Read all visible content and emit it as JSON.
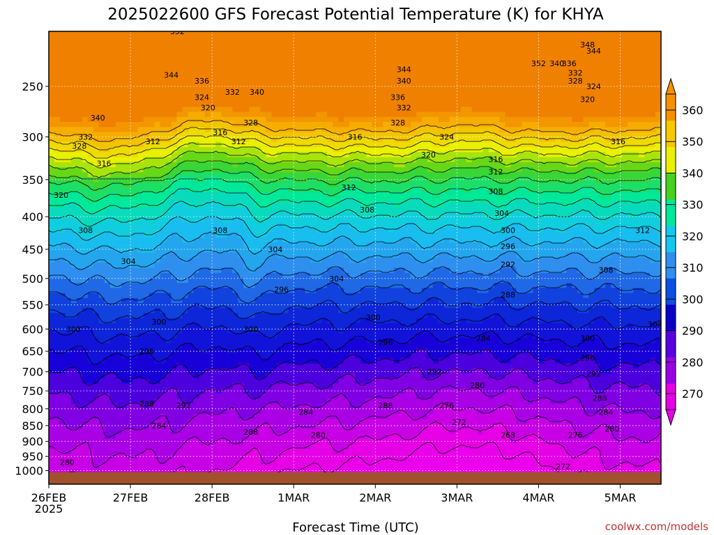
{
  "chart_data": {
    "type": "heatmap",
    "title": "2025022600 GFS Forecast Potential Temperature (K) for KHYA",
    "xlabel": "Forecast Time (UTC)",
    "ylabel": "",
    "x_ticks": [
      "26FEB",
      "27FEB",
      "28FEB",
      "1MAR",
      "2MAR",
      "3MAR",
      "4MAR",
      "5MAR"
    ],
    "x_tick_sub": "2025",
    "y_ticks": [
      250,
      300,
      350,
      400,
      450,
      500,
      550,
      600,
      650,
      700,
      750,
      800,
      850,
      900,
      950,
      1000
    ],
    "y_axis": "pressure (hPa), log scale, inverted",
    "colorbar_ticks": [
      270,
      280,
      290,
      300,
      310,
      320,
      330,
      340,
      350,
      360
    ],
    "colorbar_colors": [
      "#e600e6",
      "#9a00e6",
      "#5a00e0",
      "#0a00c8",
      "#0a4fe0",
      "#2f8fef",
      "#14c8ef",
      "#00e89a",
      "#46d21e",
      "#e9f000",
      "#f7c800",
      "#f59000"
    ],
    "contour_interval": 4,
    "contour_labels": [
      {
        "t": 0.03,
        "p": 970,
        "v": 280
      },
      {
        "t": 0.16,
        "p": 785,
        "v": 288
      },
      {
        "t": 0.18,
        "p": 850,
        "v": 284
      },
      {
        "t": 0.22,
        "p": 790,
        "v": 292
      },
      {
        "t": 0.42,
        "p": 810,
        "v": 284
      },
      {
        "t": 0.44,
        "p": 880,
        "v": 280
      },
      {
        "t": 0.55,
        "p": 790,
        "v": 288
      },
      {
        "t": 0.33,
        "p": 870,
        "v": 288
      },
      {
        "t": 0.55,
        "p": 630,
        "v": 296
      },
      {
        "t": 0.63,
        "p": 700,
        "v": 292
      },
      {
        "t": 0.53,
        "p": 575,
        "v": 300
      },
      {
        "t": 0.47,
        "p": 500,
        "v": 304
      },
      {
        "t": 0.28,
        "p": 420,
        "v": 308
      },
      {
        "t": 0.37,
        "p": 450,
        "v": 304
      },
      {
        "t": 0.38,
        "p": 520,
        "v": 296
      },
      {
        "t": 0.33,
        "p": 600,
        "v": 300
      },
      {
        "t": 0.18,
        "p": 585,
        "v": 300
      },
      {
        "t": 0.16,
        "p": 650,
        "v": 296
      },
      {
        "t": 0.04,
        "p": 600,
        "v": 300
      },
      {
        "t": 0.06,
        "p": 420,
        "v": 308
      },
      {
        "t": 0.13,
        "p": 470,
        "v": 304
      },
      {
        "t": 0.02,
        "p": 370,
        "v": 320
      },
      {
        "t": 0.09,
        "p": 330,
        "v": 316
      },
      {
        "t": 0.06,
        "p": 300,
        "v": 332
      },
      {
        "t": 0.05,
        "p": 310,
        "v": 328
      },
      {
        "t": 0.08,
        "p": 280,
        "v": 340
      },
      {
        "t": 0.17,
        "p": 305,
        "v": 312
      },
      {
        "t": 0.2,
        "p": 240,
        "v": 344
      },
      {
        "t": 0.25,
        "p": 245,
        "v": 336
      },
      {
        "t": 0.25,
        "p": 260,
        "v": 324
      },
      {
        "t": 0.26,
        "p": 270,
        "v": 320
      },
      {
        "t": 0.3,
        "p": 255,
        "v": 332
      },
      {
        "t": 0.34,
        "p": 255,
        "v": 340
      },
      {
        "t": 0.33,
        "p": 285,
        "v": 328
      },
      {
        "t": 0.28,
        "p": 295,
        "v": 316
      },
      {
        "t": 0.31,
        "p": 305,
        "v": 312
      },
      {
        "t": 0.21,
        "p": 205,
        "v": 352
      },
      {
        "t": 0.5,
        "p": 200,
        "v": 348
      },
      {
        "t": 0.5,
        "p": 300,
        "v": 316
      },
      {
        "t": 0.49,
        "p": 360,
        "v": 312
      },
      {
        "t": 0.52,
        "p": 390,
        "v": 308
      },
      {
        "t": 0.58,
        "p": 235,
        "v": 344
      },
      {
        "t": 0.58,
        "p": 245,
        "v": 340
      },
      {
        "t": 0.57,
        "p": 260,
        "v": 336
      },
      {
        "t": 0.58,
        "p": 270,
        "v": 332
      },
      {
        "t": 0.57,
        "p": 285,
        "v": 328
      },
      {
        "t": 0.65,
        "p": 300,
        "v": 324
      },
      {
        "t": 0.62,
        "p": 320,
        "v": 320
      },
      {
        "t": 0.73,
        "p": 325,
        "v": 316
      },
      {
        "t": 0.73,
        "p": 340,
        "v": 312
      },
      {
        "t": 0.73,
        "p": 365,
        "v": 308
      },
      {
        "t": 0.74,
        "p": 395,
        "v": 304
      },
      {
        "t": 0.75,
        "p": 420,
        "v": 300
      },
      {
        "t": 0.75,
        "p": 445,
        "v": 296
      },
      {
        "t": 0.75,
        "p": 475,
        "v": 292
      },
      {
        "t": 0.75,
        "p": 530,
        "v": 288
      },
      {
        "t": 0.71,
        "p": 620,
        "v": 284
      },
      {
        "t": 0.7,
        "p": 735,
        "v": 280
      },
      {
        "t": 0.65,
        "p": 790,
        "v": 276
      },
      {
        "t": 0.67,
        "p": 840,
        "v": 272
      },
      {
        "t": 0.75,
        "p": 880,
        "v": 268
      },
      {
        "t": 0.8,
        "p": 230,
        "v": 352
      },
      {
        "t": 0.83,
        "p": 230,
        "v": 340
      },
      {
        "t": 0.85,
        "p": 230,
        "v": 336
      },
      {
        "t": 0.88,
        "p": 215,
        "v": 348
      },
      {
        "t": 0.89,
        "p": 220,
        "v": 344
      },
      {
        "t": 0.86,
        "p": 238,
        "v": 332
      },
      {
        "t": 0.86,
        "p": 245,
        "v": 328
      },
      {
        "t": 0.89,
        "p": 250,
        "v": 324
      },
      {
        "t": 0.88,
        "p": 262,
        "v": 320
      },
      {
        "t": 0.93,
        "p": 305,
        "v": 316
      },
      {
        "t": 0.97,
        "p": 420,
        "v": 312
      },
      {
        "t": 0.91,
        "p": 485,
        "v": 308
      },
      {
        "t": 0.99,
        "p": 590,
        "v": 304
      },
      {
        "t": 0.88,
        "p": 620,
        "v": 300
      },
      {
        "t": 0.88,
        "p": 665,
        "v": 296
      },
      {
        "t": 0.89,
        "p": 705,
        "v": 292
      },
      {
        "t": 0.9,
        "p": 770,
        "v": 288
      },
      {
        "t": 0.91,
        "p": 810,
        "v": 284
      },
      {
        "t": 0.92,
        "p": 860,
        "v": 280
      },
      {
        "t": 0.86,
        "p": 880,
        "v": 276
      },
      {
        "t": 0.84,
        "p": 985,
        "v": 272
      }
    ]
  },
  "credit": "coolwx.com/models"
}
